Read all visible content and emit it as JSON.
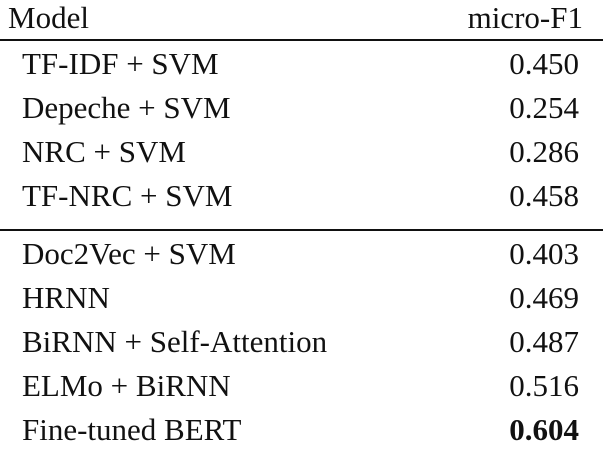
{
  "table": {
    "header": {
      "model": "Model",
      "score": "micro-F1"
    },
    "rows": [
      {
        "model": "TF-IDF + SVM",
        "score": "0.450"
      },
      {
        "model": "Depeche + SVM",
        "score": "0.254"
      },
      {
        "model": "NRC + SVM",
        "score": "0.286"
      },
      {
        "model": "TF-NRC + SVM",
        "score": "0.458"
      },
      {
        "model": "Doc2Vec + SVM",
        "score": "0.403"
      },
      {
        "model": "HRNN",
        "score": "0.469"
      },
      {
        "model": "BiRNN + Self-Attention",
        "score": "0.487"
      },
      {
        "model": "ELMo + BiRNN",
        "score": "0.516"
      },
      {
        "model": "Fine-tuned BERT",
        "score": "0.604",
        "bold": true
      }
    ]
  }
}
